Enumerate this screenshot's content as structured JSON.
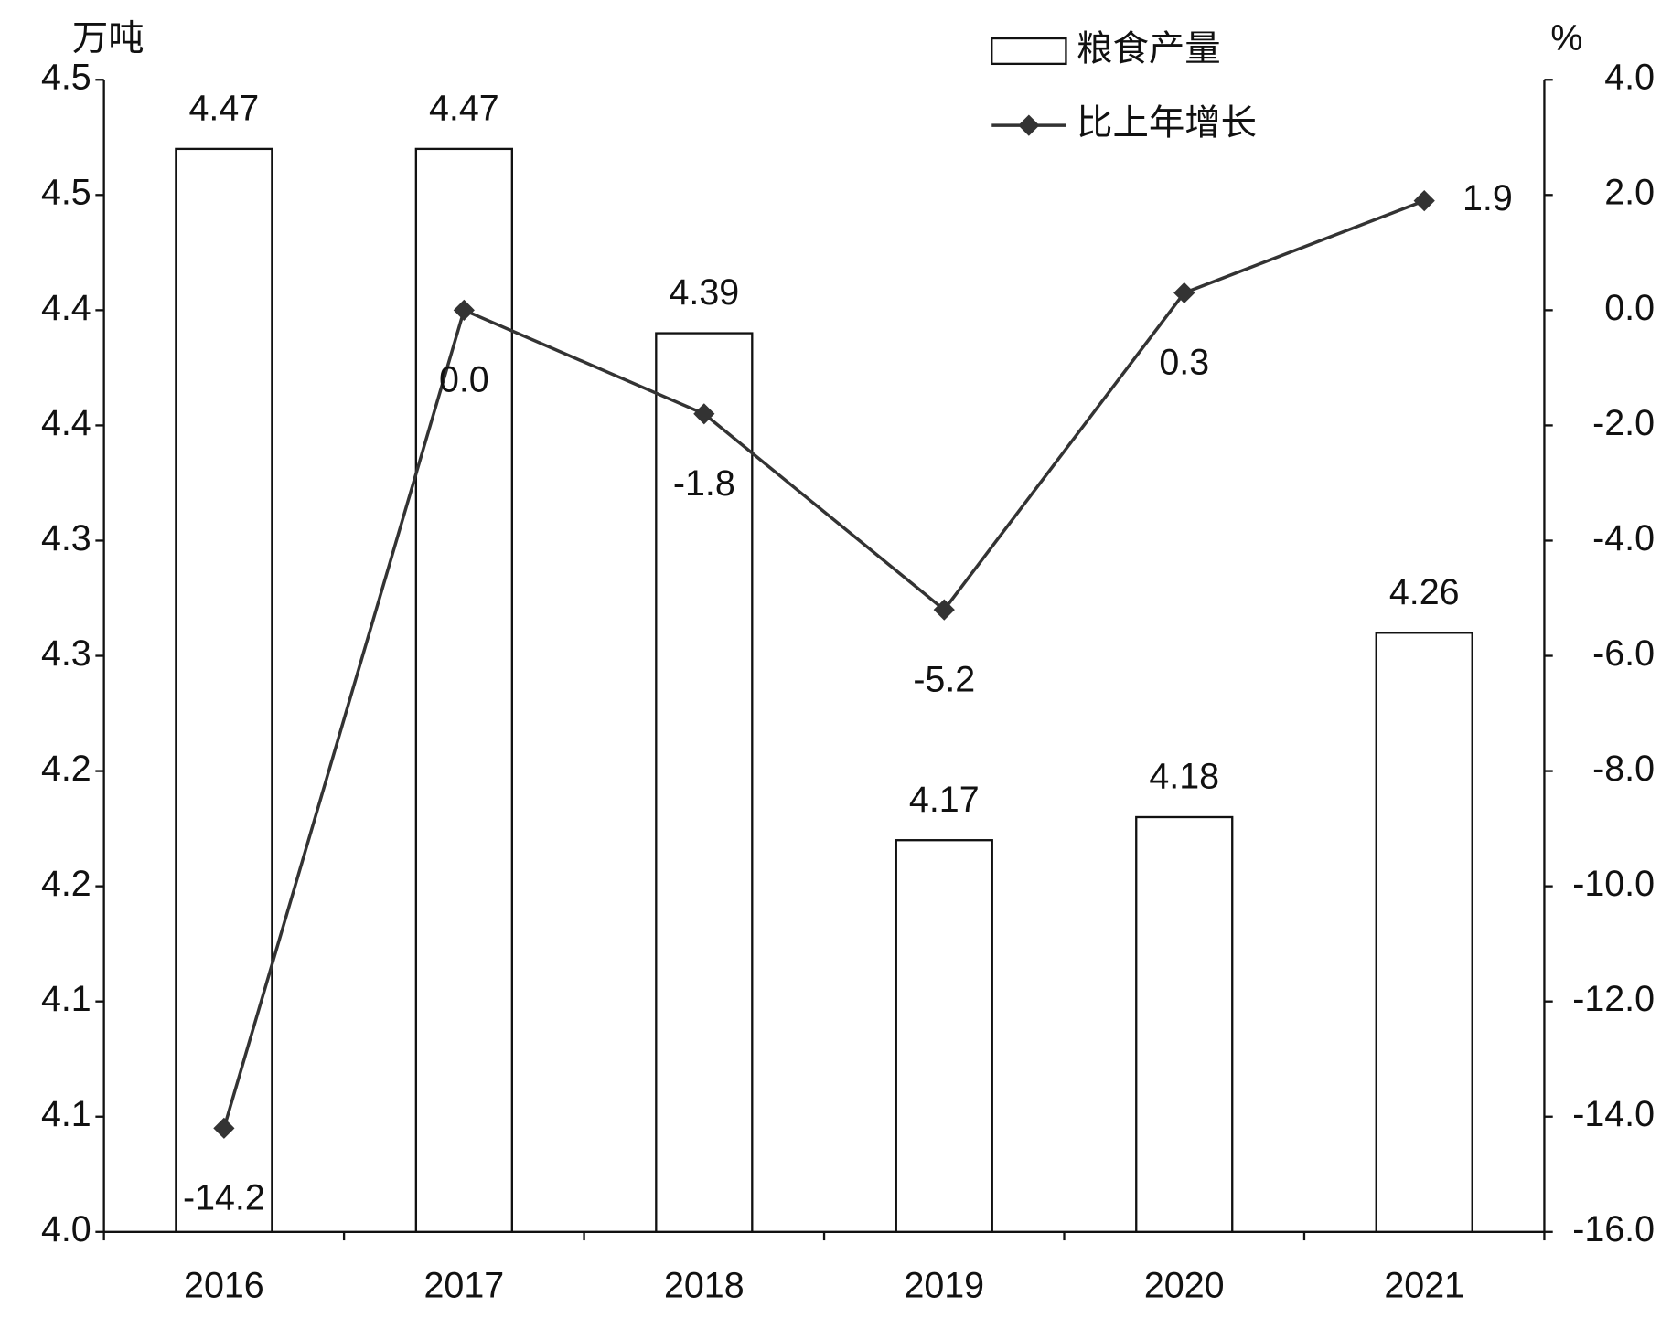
{
  "chart_data": {
    "type": "bar-line",
    "y_label": "万吨",
    "y2_label": "%",
    "categories": [
      "2016",
      "2017",
      "2018",
      "2019",
      "2020",
      "2021"
    ],
    "series": [
      {
        "name": "粮食产量",
        "type": "bar",
        "color": "#ffffff",
        "values": [
          4.47,
          4.47,
          4.39,
          4.17,
          4.18,
          4.26
        ]
      },
      {
        "name": "比上年增长",
        "type": "line",
        "axis": "y2",
        "color": "#333333",
        "values": [
          -14.2,
          0.0,
          -1.8,
          -5.2,
          0.3,
          1.9
        ],
        "value_labels": [
          "-14.2",
          "0.0",
          "-1.8",
          "-5.2",
          "0.3",
          "1.9"
        ]
      }
    ],
    "ylim": [
      4.0,
      4.5
    ],
    "yticks": [
      {
        "value": 4.0,
        "label": "4.0"
      },
      {
        "value": 4.05,
        "label": "4.1"
      },
      {
        "value": 4.1,
        "label": "4.1"
      },
      {
        "value": 4.15,
        "label": "4.2"
      },
      {
        "value": 4.2,
        "label": "4.2"
      },
      {
        "value": 4.25,
        "label": "4.3"
      },
      {
        "value": 4.3,
        "label": "4.3"
      },
      {
        "value": 4.35,
        "label": "4.4"
      },
      {
        "value": 4.4,
        "label": "4.4"
      },
      {
        "value": 4.45,
        "label": "4.5"
      },
      {
        "value": 4.5,
        "label": "4.5"
      }
    ],
    "y2lim": [
      -16,
      4
    ],
    "y2ticks": [
      {
        "value": -16,
        "label": "-16.0"
      },
      {
        "value": -14,
        "label": "-14.0"
      },
      {
        "value": -12,
        "label": "-12.0"
      },
      {
        "value": -10,
        "label": "-10.0"
      },
      {
        "value": -8,
        "label": "-8.0"
      },
      {
        "value": -6,
        "label": "-6.0"
      },
      {
        "value": -4,
        "label": "-4.0"
      },
      {
        "value": -2,
        "label": "-2.0"
      },
      {
        "value": 0,
        "label": "0.0"
      },
      {
        "value": 2,
        "label": "2.0"
      },
      {
        "value": 4,
        "label": "4.0"
      }
    ],
    "grid": false,
    "legend": "top-right"
  }
}
